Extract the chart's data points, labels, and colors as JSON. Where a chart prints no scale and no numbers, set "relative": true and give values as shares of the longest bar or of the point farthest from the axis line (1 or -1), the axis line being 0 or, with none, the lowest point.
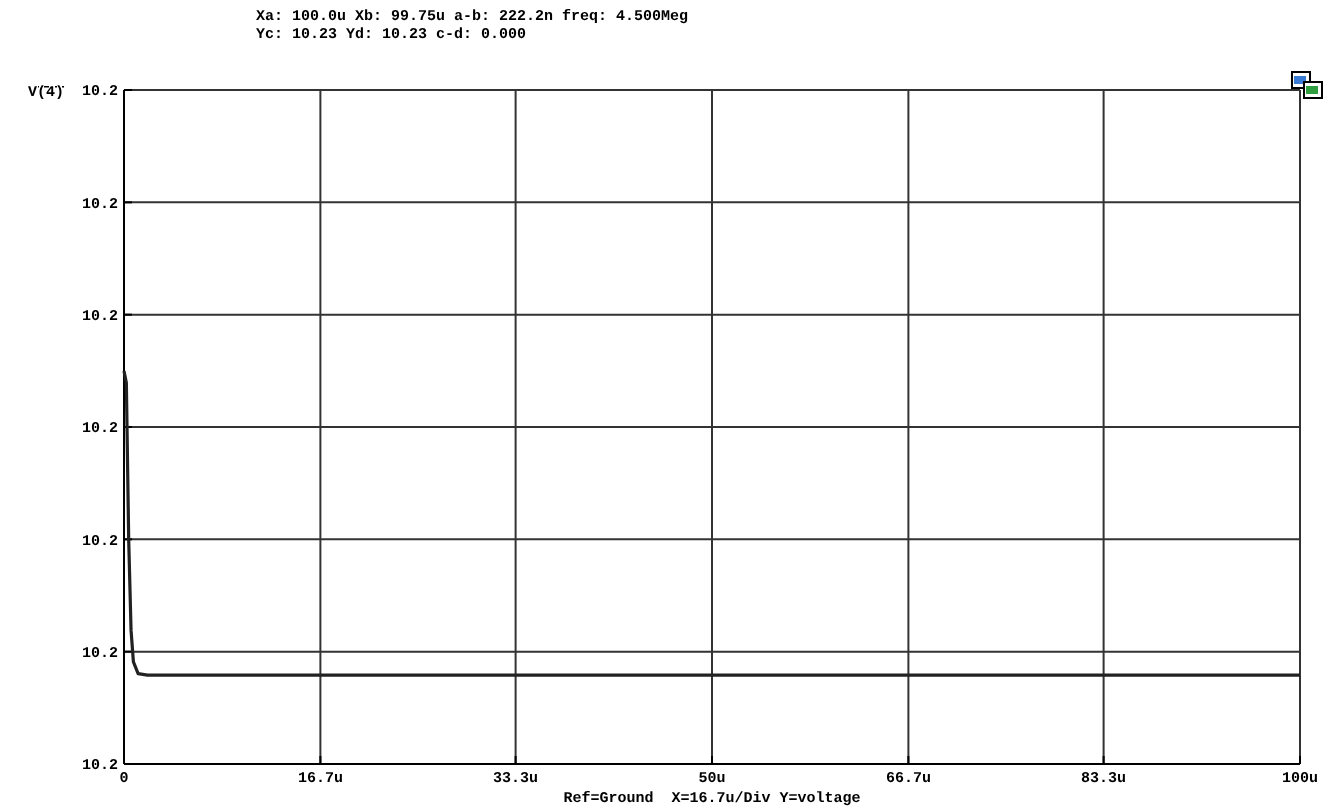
{
  "chart_data": {
    "type": "line",
    "xlabel": "Ref=Ground  X=16.7u/Div Y=voltage",
    "annotations": [
      "Xa: 100.0u Xb: 99.75u a-b: 222.2n freq: 4.500Meg",
      "Yc: 10.23  Yd: 10.23  c-d: 0.000",
      "V(4)",
      "10.2",
      "10.2",
      "10.2",
      "10.2",
      "10.2",
      "10.2",
      "10.2"
    ],
    "xlim": [
      0,
      100
    ],
    "xticks": [
      0,
      {
        "value": 16.7,
        "label": "16.7u"
      },
      {
        "value": 33.3,
        "label": "33.3u"
      },
      {
        "value": 50,
        "label": "50u"
      },
      {
        "value": 66.7,
        "label": "66.7u"
      },
      {
        "value": 83.3,
        "label": "83.3u"
      },
      {
        "value": 100,
        "label": "100u"
      }
    ],
    "relative": true,
    "grid": true,
    "marker": "none",
    "line_style": "solid",
    "series": [
      {
        "color": "#222222",
        "x": [
          0,
          0.2,
          0.4,
          0.6,
          0.8,
          1.2,
          2,
          100
        ],
        "values": [
          1,
          0.97,
          0.57,
          0.34,
          0.26,
          0.23,
          0.226,
          0.226
        ]
      }
    ]
  }
}
